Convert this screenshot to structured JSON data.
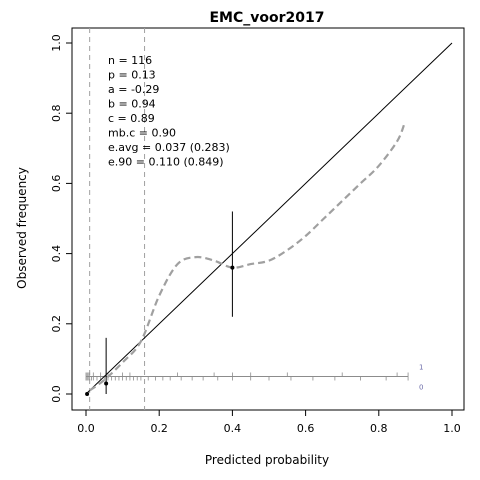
{
  "chart_data": {
    "type": "line",
    "title": "EMC_voor2017",
    "xlabel": "Predicted probability",
    "ylabel": "Observed frequency",
    "xlim": [
      0,
      1
    ],
    "ylim": [
      0,
      1
    ],
    "x_ticks": [
      0.0,
      0.2,
      0.4,
      0.6,
      0.8,
      1.0
    ],
    "y_ticks": [
      0.0,
      0.2,
      0.4,
      0.6,
      0.8,
      1.0
    ],
    "x_tick_labels": [
      "0.0",
      "0.2",
      "0.4",
      "0.6",
      "0.8",
      "1.0"
    ],
    "y_tick_labels": [
      "0.0",
      "0.2",
      "0.4",
      "0.6",
      "0.8",
      "1.0"
    ],
    "grid": false,
    "stats": [
      "n = 116",
      "p = 0.13",
      "a = -0.29",
      "b = 0.94",
      "c = 0.89",
      "mb.c = 0.90",
      "e.avg = 0.037 (0.283)",
      "e.90 = 0.110 (0.849)"
    ],
    "reference_line": {
      "x": [
        0,
        1
      ],
      "y": [
        0,
        1
      ]
    },
    "vertical_dashed_lines": [
      0.01,
      0.16
    ],
    "smooth_curve": {
      "x": [
        0.01,
        0.05,
        0.1,
        0.15,
        0.2,
        0.25,
        0.3,
        0.35,
        0.4,
        0.45,
        0.5,
        0.55,
        0.6,
        0.65,
        0.7,
        0.75,
        0.8,
        0.85,
        0.87
      ],
      "y": [
        0.01,
        0.04,
        0.09,
        0.15,
        0.28,
        0.37,
        0.39,
        0.38,
        0.36,
        0.37,
        0.38,
        0.41,
        0.45,
        0.5,
        0.55,
        0.6,
        0.65,
        0.72,
        0.77
      ]
    },
    "group_points": [
      {
        "x": 0.003,
        "y": 0.0,
        "ci": [
          0.0,
          0.0
        ]
      },
      {
        "x": 0.055,
        "y": 0.03,
        "ci": [
          0.0,
          0.16
        ]
      },
      {
        "x": 0.4,
        "y": 0.36,
        "ci": [
          0.22,
          0.52
        ]
      }
    ],
    "histogram": {
      "baseline": 0.05,
      "label_events": "1",
      "label_nonevents": "0",
      "ticks_up": [
        0.0,
        0.003,
        0.006,
        0.01,
        0.02,
        0.04,
        0.06,
        0.1,
        0.12,
        0.25,
        0.35,
        0.4,
        0.45,
        0.55,
        0.7,
        0.85,
        0.88
      ],
      "ticks_down": [
        0.0,
        0.003,
        0.006,
        0.01,
        0.015,
        0.02,
        0.03,
        0.04,
        0.05,
        0.06,
        0.07,
        0.08,
        0.09,
        0.1,
        0.11,
        0.12,
        0.13,
        0.14,
        0.15,
        0.17,
        0.19,
        0.21,
        0.23,
        0.26,
        0.29,
        0.32,
        0.36,
        0.4,
        0.45,
        0.5,
        0.56,
        0.62,
        0.68,
        0.75,
        0.82,
        0.88
      ]
    }
  }
}
